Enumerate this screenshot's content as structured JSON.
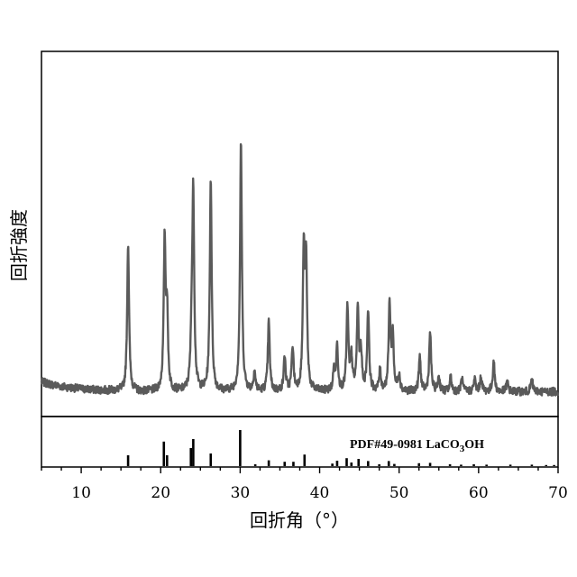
{
  "chart_data": {
    "type": "line",
    "xlabel": "回折角（°）",
    "ylabel": "回折強度",
    "xlim": [
      5,
      70
    ],
    "x_ticks": [
      10,
      20,
      30,
      40,
      50,
      60,
      70
    ],
    "grid": false,
    "reference": {
      "label_prefix": "PDF#49-0981 LaCO",
      "label_sub": "3",
      "label_suffix": "OH"
    },
    "series": [
      {
        "color": "#5a5a5a",
        "baseline": 6,
        "peaks": [
          {
            "x": 15.9,
            "y": 60
          },
          {
            "x": 20.5,
            "y": 60
          },
          {
            "x": 20.8,
            "y": 30
          },
          {
            "x": 23.9,
            "y": 20
          },
          {
            "x": 24.1,
            "y": 78
          },
          {
            "x": 26.3,
            "y": 86
          },
          {
            "x": 30.1,
            "y": 100
          },
          {
            "x": 31.8,
            "y": 8
          },
          {
            "x": 33.6,
            "y": 28
          },
          {
            "x": 35.6,
            "y": 14
          },
          {
            "x": 36.6,
            "y": 18
          },
          {
            "x": 38.0,
            "y": 55
          },
          {
            "x": 38.3,
            "y": 50
          },
          {
            "x": 41.8,
            "y": 8
          },
          {
            "x": 42.2,
            "y": 18
          },
          {
            "x": 43.5,
            "y": 34
          },
          {
            "x": 44.0,
            "y": 13
          },
          {
            "x": 44.8,
            "y": 33
          },
          {
            "x": 45.2,
            "y": 15
          },
          {
            "x": 46.1,
            "y": 33
          },
          {
            "x": 47.6,
            "y": 8
          },
          {
            "x": 48.8,
            "y": 35
          },
          {
            "x": 49.2,
            "y": 22
          },
          {
            "x": 50.0,
            "y": 7
          },
          {
            "x": 52.6,
            "y": 14
          },
          {
            "x": 53.9,
            "y": 24
          },
          {
            "x": 55.0,
            "y": 6
          },
          {
            "x": 56.5,
            "y": 6
          },
          {
            "x": 57.9,
            "y": 5
          },
          {
            "x": 59.5,
            "y": 5
          },
          {
            "x": 60.3,
            "y": 6
          },
          {
            "x": 61.9,
            "y": 12
          },
          {
            "x": 63.6,
            "y": 4
          },
          {
            "x": 66.7,
            "y": 5
          }
        ]
      }
    ],
    "reference_lines": [
      {
        "x": 15.9,
        "h": 0.3
      },
      {
        "x": 20.4,
        "h": 0.68
      },
      {
        "x": 20.8,
        "h": 0.3
      },
      {
        "x": 23.8,
        "h": 0.5
      },
      {
        "x": 24.1,
        "h": 0.75
      },
      {
        "x": 26.3,
        "h": 0.35
      },
      {
        "x": 30.0,
        "h": 1.0
      },
      {
        "x": 31.9,
        "h": 0.05
      },
      {
        "x": 33.6,
        "h": 0.16
      },
      {
        "x": 35.6,
        "h": 0.12
      },
      {
        "x": 36.7,
        "h": 0.12
      },
      {
        "x": 38.1,
        "h": 0.32
      },
      {
        "x": 41.6,
        "h": 0.07
      },
      {
        "x": 42.2,
        "h": 0.15
      },
      {
        "x": 43.4,
        "h": 0.22
      },
      {
        "x": 44.0,
        "h": 0.1
      },
      {
        "x": 44.9,
        "h": 0.2
      },
      {
        "x": 46.1,
        "h": 0.14
      },
      {
        "x": 47.5,
        "h": 0.05
      },
      {
        "x": 48.7,
        "h": 0.14
      },
      {
        "x": 49.4,
        "h": 0.06
      },
      {
        "x": 52.5,
        "h": 0.08
      },
      {
        "x": 53.9,
        "h": 0.09
      },
      {
        "x": 56.4,
        "h": 0.05
      },
      {
        "x": 57.8,
        "h": 0.04
      },
      {
        "x": 59.4,
        "h": 0.05
      },
      {
        "x": 61.0,
        "h": 0.04
      },
      {
        "x": 64.0,
        "h": 0.04
      },
      {
        "x": 66.7,
        "h": 0.04
      },
      {
        "x": 68.5,
        "h": 0.03
      },
      {
        "x": 69.5,
        "h": 0.03
      }
    ]
  }
}
